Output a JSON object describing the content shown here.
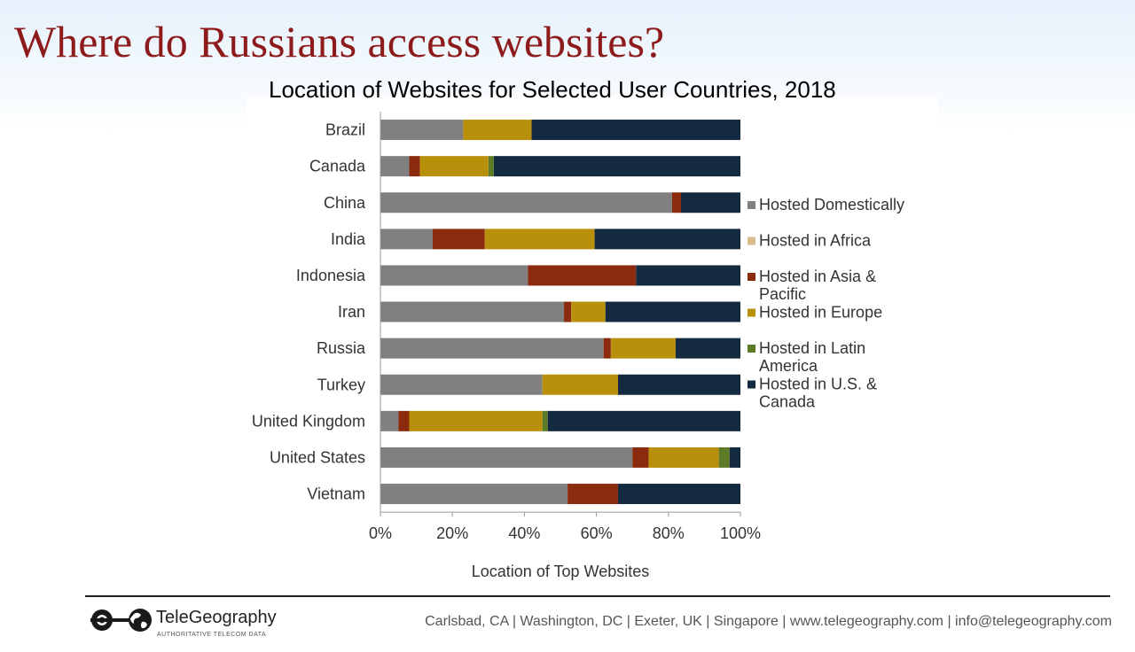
{
  "slide_title": "Where do Russians access websites?",
  "footer": {
    "logo_name": "TeleGeography",
    "logo_tagline": "AUTHORITATIVE TELECOM DATA",
    "contact": "Carlsbad, CA | Washington, DC | Exeter, UK | Singapore | www.telegeography.com | info@telegeography.com"
  },
  "chart_data": {
    "type": "bar",
    "orientation": "horizontal",
    "stacked": true,
    "title": "Location of Websites for Selected User Countries, 2018",
    "xlabel": "Location of Top Websites",
    "ylabel": "",
    "xlim": [
      0,
      100
    ],
    "xticks": [
      "0%",
      "20%",
      "40%",
      "60%",
      "80%",
      "100%"
    ],
    "legend_position": "right",
    "grid": false,
    "categories": [
      "Brazil",
      "Canada",
      "China",
      "India",
      "Indonesia",
      "Iran",
      "Russia",
      "Turkey",
      "United Kingdom",
      "United States",
      "Vietnam"
    ],
    "series": [
      {
        "name": "Hosted Domestically",
        "color": "#808080",
        "values": [
          23,
          8,
          81,
          14.5,
          41,
          51,
          62,
          45,
          5,
          70,
          52
        ]
      },
      {
        "name": "Hosted in Africa",
        "color": "#d8bd8a",
        "values": [
          0,
          0,
          0,
          0,
          0,
          0,
          0,
          0,
          0,
          0,
          0
        ]
      },
      {
        "name": "Hosted in Asia & Pacific",
        "color": "#8b2a0c",
        "values": [
          0,
          3,
          2.5,
          14.5,
          30,
          2,
          2,
          0,
          3,
          4.5,
          14
        ]
      },
      {
        "name": "Hosted in Europe",
        "color": "#b8900c",
        "values": [
          19,
          19,
          0,
          30.5,
          0,
          9.5,
          18,
          21,
          37,
          19.5,
          0
        ]
      },
      {
        "name": "Hosted in Latin America",
        "color": "#5d7a26",
        "values": [
          0,
          1.5,
          0,
          0,
          0,
          0,
          0,
          0,
          1.5,
          3,
          0
        ]
      },
      {
        "name": "Hosted in U.S. & Canada",
        "color": "#142a40",
        "values": [
          58,
          68.5,
          16.5,
          40.5,
          29,
          37.5,
          18,
          34,
          53.5,
          3,
          34
        ]
      }
    ]
  }
}
